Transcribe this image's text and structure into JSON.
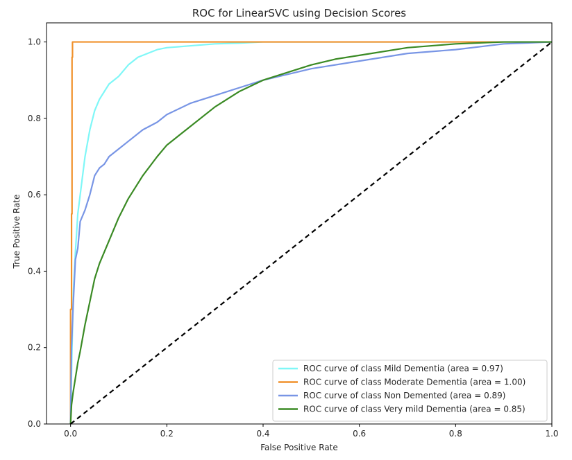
{
  "chart_data": {
    "type": "line",
    "title": "ROC for LinearSVC using Decision Scores",
    "xlabel": "False Positive Rate",
    "ylabel": "True Positive Rate",
    "xlim": [
      -0.05,
      1.0
    ],
    "ylim": [
      0.0,
      1.05
    ],
    "xticks": [
      "0.0",
      "0.2",
      "0.4",
      "0.6",
      "0.8",
      "1.0"
    ],
    "yticks": [
      "0.0",
      "0.2",
      "0.4",
      "0.6",
      "0.8",
      "1.0"
    ],
    "legend_position": "lower-right",
    "grid": false,
    "series": [
      {
        "name": "ROC curve of class Mild Dementia (area = 0.97)",
        "color": "#7ff7f7",
        "x": [
          0.0,
          0.003,
          0.006,
          0.01,
          0.015,
          0.02,
          0.025,
          0.03,
          0.04,
          0.05,
          0.06,
          0.07,
          0.08,
          0.09,
          0.1,
          0.12,
          0.14,
          0.16,
          0.18,
          0.2,
          0.25,
          0.3,
          0.35,
          0.4,
          0.5,
          0.6,
          0.7,
          0.8,
          0.9,
          1.0
        ],
        "y": [
          0.0,
          0.2,
          0.35,
          0.45,
          0.55,
          0.6,
          0.65,
          0.7,
          0.77,
          0.82,
          0.85,
          0.87,
          0.89,
          0.9,
          0.91,
          0.94,
          0.96,
          0.97,
          0.98,
          0.985,
          0.99,
          0.995,
          0.997,
          1.0,
          1.0,
          1.0,
          1.0,
          1.0,
          1.0,
          1.0
        ]
      },
      {
        "name": "ROC curve of class Moderate Dementia (area = 1.00)",
        "color": "#f0912b",
        "x": [
          0.0,
          0.0,
          0.002,
          0.002,
          0.003,
          0.003,
          0.004,
          0.004,
          0.005,
          1.0
        ],
        "y": [
          0.0,
          0.3,
          0.3,
          0.55,
          0.55,
          0.96,
          0.96,
          1.0,
          1.0,
          1.0
        ]
      },
      {
        "name": "ROC curve of class Non Demented (area = 0.89)",
        "color": "#7895e5",
        "x": [
          0.0,
          0.002,
          0.005,
          0.01,
          0.015,
          0.02,
          0.03,
          0.04,
          0.05,
          0.06,
          0.07,
          0.08,
          0.1,
          0.12,
          0.15,
          0.18,
          0.2,
          0.25,
          0.3,
          0.35,
          0.4,
          0.5,
          0.6,
          0.7,
          0.8,
          0.9,
          1.0
        ],
        "y": [
          0.0,
          0.2,
          0.3,
          0.43,
          0.46,
          0.53,
          0.56,
          0.6,
          0.65,
          0.67,
          0.68,
          0.7,
          0.72,
          0.74,
          0.77,
          0.79,
          0.81,
          0.84,
          0.86,
          0.88,
          0.9,
          0.93,
          0.95,
          0.97,
          0.98,
          0.995,
          1.0
        ]
      },
      {
        "name": "ROC curve of class Very mild Dementia (area = 0.85)",
        "color": "#3a8a24",
        "x": [
          0.0,
          0.002,
          0.005,
          0.01,
          0.015,
          0.02,
          0.03,
          0.04,
          0.05,
          0.06,
          0.08,
          0.1,
          0.12,
          0.15,
          0.18,
          0.2,
          0.25,
          0.3,
          0.35,
          0.4,
          0.45,
          0.5,
          0.55,
          0.6,
          0.7,
          0.8,
          0.9,
          1.0
        ],
        "y": [
          0.0,
          0.05,
          0.08,
          0.12,
          0.16,
          0.19,
          0.26,
          0.32,
          0.38,
          0.42,
          0.48,
          0.54,
          0.59,
          0.65,
          0.7,
          0.73,
          0.78,
          0.83,
          0.87,
          0.9,
          0.92,
          0.94,
          0.955,
          0.965,
          0.985,
          0.995,
          1.0,
          1.0
        ]
      },
      {
        "name": "",
        "color": "#000000",
        "dashed": true,
        "x": [
          0.0,
          1.0
        ],
        "y": [
          0.0,
          1.0
        ]
      }
    ]
  }
}
